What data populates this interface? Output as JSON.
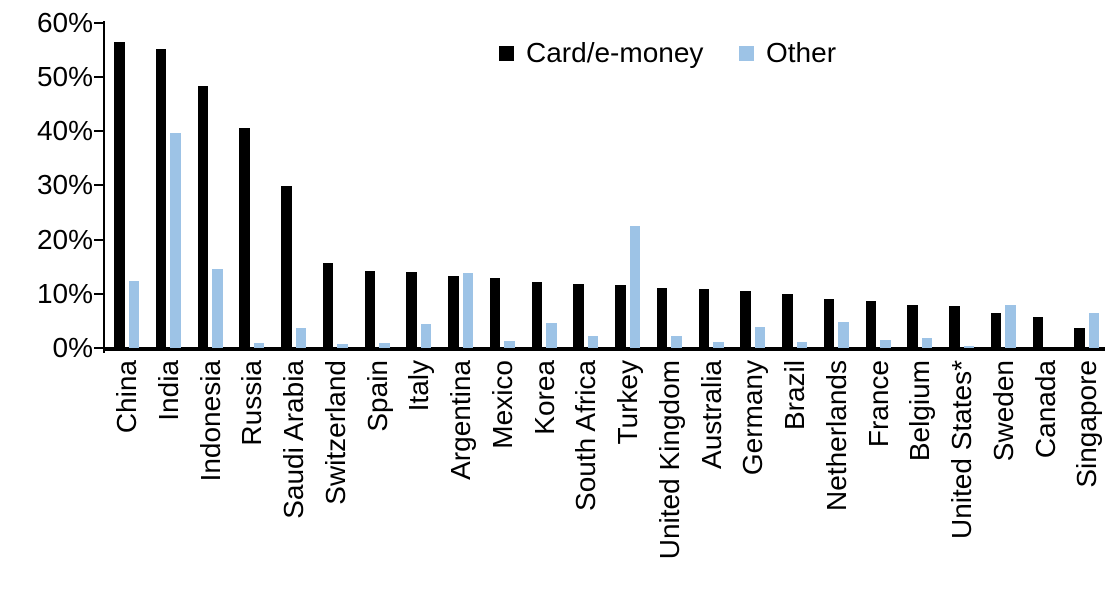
{
  "chart_data": {
    "type": "bar",
    "title": "",
    "xlabel": "",
    "ylabel": "",
    "ylim": [
      0,
      60
    ],
    "grid": false,
    "legend_position": "top-center",
    "y_ticks": [
      {
        "value": 60,
        "label": "60%"
      },
      {
        "value": 50,
        "label": "50%"
      },
      {
        "value": 40,
        "label": "40%"
      },
      {
        "value": 30,
        "label": "30%"
      },
      {
        "value": 20,
        "label": "20%"
      },
      {
        "value": 10,
        "label": "10%"
      },
      {
        "value": 0,
        "label": "0%"
      }
    ],
    "categories": [
      "China",
      "India",
      "Indonesia",
      "Russia",
      "Saudi Arabia",
      "Switzerland",
      "Spain",
      "Italy",
      "Argentina",
      "Mexico",
      "Korea",
      "South Africa",
      "Turkey",
      "United Kingdom",
      "Australia",
      "Germany",
      "Brazil",
      "Netherlands",
      "France",
      "Belgium",
      "United States*",
      "Sweden",
      "Canada",
      "Singapore"
    ],
    "series": [
      {
        "name": "Card/e-money",
        "color": "#000000",
        "values": [
          56.4,
          55.1,
          48.4,
          40.6,
          29.9,
          15.7,
          14.2,
          14.1,
          13.3,
          12.9,
          12.1,
          11.8,
          11.6,
          11.0,
          10.8,
          10.6,
          10.0,
          9.1,
          8.6,
          7.9,
          7.8,
          6.4,
          5.8,
          3.7
        ]
      },
      {
        "name": "Other",
        "color": "#9DC3E6",
        "values": [
          12.3,
          39.7,
          14.6,
          1.0,
          3.7,
          0.7,
          0.9,
          4.5,
          13.9,
          1.3,
          4.6,
          2.3,
          22.6,
          2.3,
          1.1,
          3.8,
          1.1,
          4.8,
          1.4,
          1.8,
          0.3,
          8.0,
          0.0,
          6.5
        ]
      }
    ]
  }
}
